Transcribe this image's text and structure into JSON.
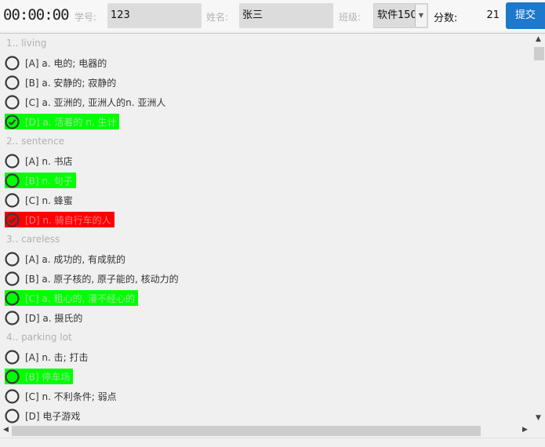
{
  "header": {
    "timer": "00:00:00",
    "student_id_label": "学号:",
    "student_id_value": "123",
    "name_label": "姓名:",
    "name_value": "张三",
    "class_label": "班级:",
    "class_value": "软件150",
    "score_label": "分数:",
    "score_value": "21",
    "submit_label": "提交"
  },
  "colors": {
    "correct": "#00ff00",
    "wrong": "#ff0000",
    "accent": "#1e78cc"
  },
  "questions": [
    {
      "title": "1.. living",
      "options": [
        {
          "text": "[A] a. 电的; 电器的",
          "state": "none",
          "selected": false
        },
        {
          "text": "[B] a. 安静的; 寂静的",
          "state": "none",
          "selected": false
        },
        {
          "text": "[C] a. 亚洲的, 亚洲人的n. 亚洲人",
          "state": "none",
          "selected": false
        },
        {
          "text": "[D] a. 活着的 n. 生计",
          "state": "correct",
          "selected": true
        }
      ]
    },
    {
      "title": "2.. sentence",
      "options": [
        {
          "text": "[A] n. 书店",
          "state": "none",
          "selected": false
        },
        {
          "text": "[B] n. 句子",
          "state": "correct",
          "selected": false
        },
        {
          "text": "[C] n. 蜂蜜",
          "state": "none",
          "selected": false
        },
        {
          "text": "[D] n. 骑自行车的人",
          "state": "wrong",
          "selected": true
        }
      ]
    },
    {
      "title": "3.. careless",
      "options": [
        {
          "text": "[A] a. 成功的, 有成就的",
          "state": "none",
          "selected": false
        },
        {
          "text": "[B] a. 原子核的, 原子能的, 核动力的",
          "state": "none",
          "selected": false
        },
        {
          "text": "[C] a. 粗心的, 漫不经心的",
          "state": "correct",
          "selected": false
        },
        {
          "text": "[D] a. 摄氏的",
          "state": "none",
          "selected": false
        }
      ]
    },
    {
      "title": "4.. parking lot",
      "options": [
        {
          "text": "[A] n. 击; 打击",
          "state": "none",
          "selected": false
        },
        {
          "text": "[B] 停车场",
          "state": "correct",
          "selected": false
        },
        {
          "text": "[C] n. 不利条件; 弱点",
          "state": "none",
          "selected": false
        },
        {
          "text": "[D] 电子游戏",
          "state": "none",
          "selected": false
        }
      ]
    }
  ]
}
